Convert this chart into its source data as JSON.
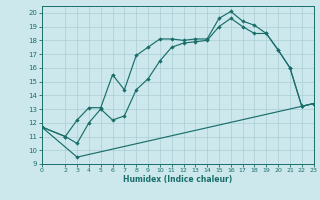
{
  "xlabel": "Humidex (Indice chaleur)",
  "bg_color": "#cce8ed",
  "grid_color": "#aacdd4",
  "line_color": "#1a6e6a",
  "xlim": [
    0,
    23
  ],
  "ylim": [
    9,
    20.5
  ],
  "xticks": [
    0,
    2,
    3,
    4,
    5,
    6,
    7,
    8,
    9,
    10,
    11,
    12,
    13,
    14,
    15,
    16,
    17,
    18,
    19,
    20,
    21,
    22,
    23
  ],
  "yticks": [
    9,
    10,
    11,
    12,
    13,
    14,
    15,
    16,
    17,
    18,
    19,
    20
  ],
  "line1_x": [
    0,
    2,
    3,
    4,
    5,
    6,
    7,
    8,
    9,
    10,
    11,
    12,
    13,
    14,
    15,
    16,
    17,
    18,
    19,
    20,
    21,
    22,
    23
  ],
  "line1_y": [
    11.7,
    11.0,
    12.2,
    13.1,
    13.1,
    15.5,
    14.4,
    16.9,
    17.5,
    18.1,
    18.1,
    18.0,
    18.1,
    18.1,
    19.6,
    20.1,
    19.4,
    19.1,
    18.5,
    17.3,
    16.0,
    13.2,
    13.4
  ],
  "line2_x": [
    0,
    2,
    3,
    4,
    5,
    6,
    7,
    8,
    9,
    10,
    11,
    12,
    13,
    14,
    15,
    16,
    17,
    18,
    19,
    20,
    21,
    22,
    23
  ],
  "line2_y": [
    11.7,
    11.0,
    10.5,
    12.0,
    13.0,
    12.2,
    12.5,
    14.4,
    15.2,
    16.5,
    17.5,
    17.8,
    17.9,
    18.0,
    19.0,
    19.6,
    19.0,
    18.5,
    18.5,
    17.3,
    16.0,
    13.2,
    13.4
  ],
  "line3_x": [
    0,
    3,
    22,
    23
  ],
  "line3_y": [
    11.7,
    9.5,
    13.2,
    13.4
  ]
}
